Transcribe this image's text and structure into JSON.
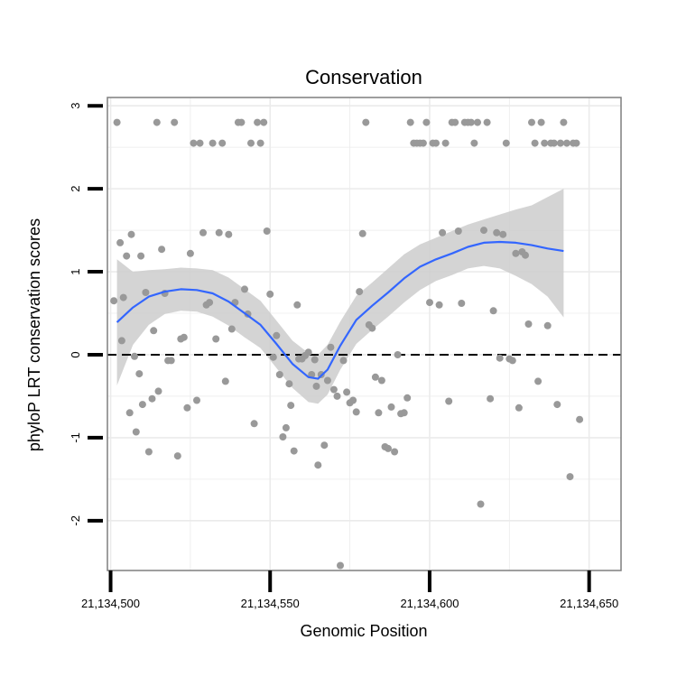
{
  "chart_data": {
    "type": "scatter",
    "title": "Conservation",
    "xlabel": "Genomic Position",
    "ylabel": "phyloP LRT conservation scores",
    "xlim": [
      21134499,
      21134660
    ],
    "ylim": [
      -2.6,
      3.1
    ],
    "x_ticks": [
      21134500,
      21134550,
      21134600,
      21134650
    ],
    "x_tick_labels": [
      "21,134,500",
      "21,134,550",
      "21,134,600",
      "21,134,650"
    ],
    "y_ticks": [
      -2,
      -1,
      0,
      1,
      2,
      3
    ],
    "y_tick_labels": [
      "-2",
      "-1",
      "0",
      "1",
      "2",
      "3"
    ],
    "grid": true,
    "reference_line": {
      "y": 0,
      "style": "dashed",
      "color": "#000000"
    },
    "colors": {
      "points": "#999999",
      "smooth_line": "#3366ff",
      "confidence_band": "#cccccc",
      "grid": "#ebebeb",
      "panel_border": "#7f7f7f"
    },
    "points": [
      [
        21134501,
        0.65
      ],
      [
        21134502,
        2.8
      ],
      [
        21134503,
        1.35
      ],
      [
        21134503.5,
        0.17
      ],
      [
        21134504,
        0.69
      ],
      [
        21134505,
        1.19
      ],
      [
        21134506,
        -0.7
      ],
      [
        21134506.5,
        1.45
      ],
      [
        21134507.5,
        -0.02
      ],
      [
        21134508,
        -0.93
      ],
      [
        21134509,
        -0.23
      ],
      [
        21134509.5,
        1.19
      ],
      [
        21134510,
        -0.6
      ],
      [
        21134511,
        0.75
      ],
      [
        21134512,
        -1.17
      ],
      [
        21134513,
        -0.53
      ],
      [
        21134513.5,
        0.29
      ],
      [
        21134514.5,
        2.8
      ],
      [
        21134515,
        -0.44
      ],
      [
        21134516,
        1.27
      ],
      [
        21134517,
        0.74
      ],
      [
        21134518,
        -0.07
      ],
      [
        21134519,
        -0.07
      ],
      [
        21134520,
        2.8
      ],
      [
        21134521,
        -1.22
      ],
      [
        21134522,
        0.19
      ],
      [
        21134523,
        0.21
      ],
      [
        21134524,
        -0.64
      ],
      [
        21134525,
        1.22
      ],
      [
        21134526,
        2.55
      ],
      [
        21134527,
        -0.55
      ],
      [
        21134528,
        2.55
      ],
      [
        21134529,
        1.47
      ],
      [
        21134530,
        0.6
      ],
      [
        21134531,
        0.63
      ],
      [
        21134532,
        2.55
      ],
      [
        21134533,
        0.19
      ],
      [
        21134534,
        1.47
      ],
      [
        21134535,
        2.55
      ],
      [
        21134536,
        -0.32
      ],
      [
        21134537,
        1.45
      ],
      [
        21134538,
        0.31
      ],
      [
        21134539,
        0.63
      ],
      [
        21134540,
        2.8
      ],
      [
        21134541,
        2.8
      ],
      [
        21134542,
        0.79
      ],
      [
        21134543,
        0.49
      ],
      [
        21134544,
        2.55
      ],
      [
        21134545,
        -0.83
      ],
      [
        21134546,
        2.8
      ],
      [
        21134547,
        2.55
      ],
      [
        21134548,
        2.8
      ],
      [
        21134549,
        1.49
      ],
      [
        21134550,
        0.73
      ],
      [
        21134551,
        -0.03
      ],
      [
        21134552,
        0.23
      ],
      [
        21134553,
        -0.24
      ],
      [
        21134554,
        -0.99
      ],
      [
        21134555,
        -0.88
      ],
      [
        21134556,
        -0.35
      ],
      [
        21134556.5,
        -0.61
      ],
      [
        21134557.5,
        -1.16
      ],
      [
        21134558.5,
        0.6
      ],
      [
        21134559,
        -0.05
      ],
      [
        21134560,
        -0.05
      ],
      [
        21134561,
        -0.01
      ],
      [
        21134562,
        0.03
      ],
      [
        21134563,
        -0.24
      ],
      [
        21134564,
        -0.06
      ],
      [
        21134564.5,
        -0.38
      ],
      [
        21134565,
        -1.33
      ],
      [
        21134566,
        -0.24
      ],
      [
        21134567,
        -1.09
      ],
      [
        21134568,
        -0.31
      ],
      [
        21134569,
        0.09
      ],
      [
        21134570,
        -0.42
      ],
      [
        21134571,
        -0.5
      ],
      [
        21134572,
        -2.54
      ],
      [
        21134573,
        -0.07
      ],
      [
        21134574,
        -0.45
      ],
      [
        21134575,
        -0.58
      ],
      [
        21134576,
        -0.55
      ],
      [
        21134577,
        -0.69
      ],
      [
        21134578,
        0.76
      ],
      [
        21134579,
        1.46
      ],
      [
        21134580,
        2.8
      ],
      [
        21134581,
        0.36
      ],
      [
        21134582,
        0.32
      ],
      [
        21134583,
        -0.27
      ],
      [
        21134584,
        -0.7
      ],
      [
        21134585,
        -0.31
      ],
      [
        21134586,
        -1.11
      ],
      [
        21134587,
        -1.13
      ],
      [
        21134588,
        -0.63
      ],
      [
        21134589,
        -1.17
      ],
      [
        21134590,
        0.0
      ],
      [
        21134591,
        -0.71
      ],
      [
        21134592,
        -0.7
      ],
      [
        21134593,
        -0.52
      ],
      [
        21134594,
        2.8
      ],
      [
        21134595,
        2.55
      ],
      [
        21134596,
        2.55
      ],
      [
        21134597,
        2.55
      ],
      [
        21134598,
        2.55
      ],
      [
        21134599,
        2.8
      ],
      [
        21134600,
        0.63
      ],
      [
        21134601,
        2.55
      ],
      [
        21134602,
        2.55
      ],
      [
        21134603,
        0.6
      ],
      [
        21134604,
        1.47
      ],
      [
        21134605,
        2.55
      ],
      [
        21134606,
        -0.56
      ],
      [
        21134607,
        2.8
      ],
      [
        21134608,
        2.8
      ],
      [
        21134609,
        1.49
      ],
      [
        21134610,
        0.62
      ],
      [
        21134611,
        2.8
      ],
      [
        21134612,
        2.8
      ],
      [
        21134613,
        2.8
      ],
      [
        21134614,
        2.55
      ],
      [
        21134615,
        2.8
      ],
      [
        21134616,
        -1.8
      ],
      [
        21134617,
        1.5
      ],
      [
        21134618,
        2.8
      ],
      [
        21134619,
        -0.53
      ],
      [
        21134620,
        0.53
      ],
      [
        21134621,
        1.47
      ],
      [
        21134622,
        -0.04
      ],
      [
        21134623,
        1.45
      ],
      [
        21134624,
        2.55
      ],
      [
        21134625,
        -0.05
      ],
      [
        21134626,
        -0.07
      ],
      [
        21134627,
        1.22
      ],
      [
        21134628,
        -0.64
      ],
      [
        21134629,
        1.24
      ],
      [
        21134630,
        1.2
      ],
      [
        21134631,
        0.37
      ],
      [
        21134632,
        2.8
      ],
      [
        21134633,
        2.55
      ],
      [
        21134634,
        -0.32
      ],
      [
        21134635,
        2.8
      ],
      [
        21134636,
        2.55
      ],
      [
        21134637,
        0.35
      ],
      [
        21134638,
        2.55
      ],
      [
        21134639,
        2.55
      ],
      [
        21134640,
        -0.6
      ],
      [
        21134641,
        2.55
      ],
      [
        21134642,
        2.8
      ],
      [
        21134643,
        2.55
      ],
      [
        21134644,
        -1.47
      ],
      [
        21134645,
        2.55
      ],
      [
        21134646,
        2.55
      ],
      [
        21134647,
        -0.78
      ]
    ],
    "smooth_fit": [
      [
        21134502,
        0.39,
        -0.37,
        1.15
      ],
      [
        21134507,
        0.57,
        0.12,
        1.0
      ],
      [
        21134512,
        0.7,
        0.36,
        1.02
      ],
      [
        21134517,
        0.76,
        0.49,
        1.03
      ],
      [
        21134522,
        0.79,
        0.53,
        1.05
      ],
      [
        21134527,
        0.78,
        0.52,
        1.04
      ],
      [
        21134532,
        0.74,
        0.46,
        1.02
      ],
      [
        21134537,
        0.64,
        0.35,
        0.93
      ],
      [
        21134542,
        0.5,
        0.21,
        0.79
      ],
      [
        21134547,
        0.36,
        0.08,
        0.65
      ],
      [
        21134552,
        0.13,
        -0.16,
        0.41
      ],
      [
        21134557,
        -0.11,
        -0.4,
        0.17
      ],
      [
        21134562,
        -0.27,
        -0.57,
        0.02
      ],
      [
        21134565,
        -0.29,
        -0.59,
        0.0
      ],
      [
        21134568,
        -0.18,
        -0.48,
        0.12
      ],
      [
        21134572,
        0.11,
        -0.18,
        0.4
      ],
      [
        21134577,
        0.42,
        0.13,
        0.71
      ],
      [
        21134582,
        0.59,
        0.3,
        0.87
      ],
      [
        21134587,
        0.75,
        0.46,
        1.04
      ],
      [
        21134592,
        0.92,
        0.63,
        1.21
      ],
      [
        21134597,
        1.06,
        0.78,
        1.33
      ],
      [
        21134602,
        1.15,
        0.89,
        1.41
      ],
      [
        21134607,
        1.22,
        0.96,
        1.49
      ],
      [
        21134612,
        1.3,
        1.04,
        1.57
      ],
      [
        21134617,
        1.35,
        1.07,
        1.63
      ],
      [
        21134622,
        1.36,
        1.04,
        1.69
      ],
      [
        21134627,
        1.35,
        0.95,
        1.75
      ],
      [
        21134632,
        1.32,
        0.85,
        1.8
      ],
      [
        21134637,
        1.28,
        0.7,
        1.9
      ],
      [
        21134642,
        1.25,
        0.45,
        2.0
      ]
    ]
  }
}
